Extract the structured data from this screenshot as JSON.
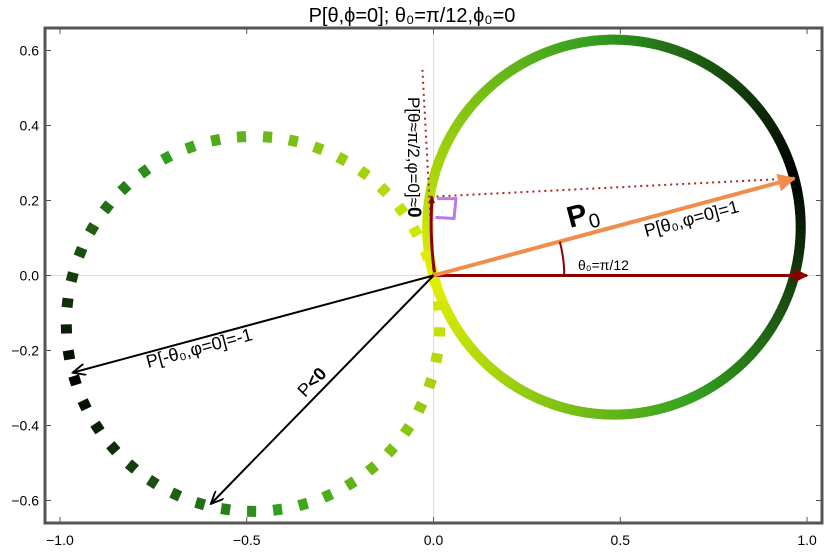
{
  "chart_data": {
    "type": "line",
    "title": "P[θ,ϕ=0]; θ₀=π/12,ϕ₀=0",
    "xlim": [
      -1.04,
      1.04
    ],
    "ylim": [
      -0.66,
      0.66
    ],
    "x_ticks": [
      {
        "value": -1.0,
        "label": "−1.0"
      },
      {
        "value": -0.5,
        "label": "−0.5"
      },
      {
        "value": 0.0,
        "label": "0.0"
      },
      {
        "value": 0.5,
        "label": "0.5"
      },
      {
        "value": 1.0,
        "label": "1.0"
      }
    ],
    "y_ticks": [
      {
        "value": -0.6,
        "label": "−0.6"
      },
      {
        "value": -0.4,
        "label": "−0.4"
      },
      {
        "value": -0.2,
        "label": "−0.2"
      },
      {
        "value": 0.0,
        "label": "0.0"
      },
      {
        "value": 0.2,
        "label": "0.2"
      },
      {
        "value": 0.4,
        "label": "0.4"
      },
      {
        "value": 0.6,
        "label": "0.6"
      }
    ],
    "grid": false,
    "series": [
      {
        "style": "solid",
        "curve": "P = cos(θ−θ₀), positive lobe",
        "center": [
          0.483,
          0.129
        ],
        "radius": 0.5
      },
      {
        "style": "dashed",
        "curve": "P < 0, negative lobe",
        "center": [
          -0.483,
          -0.129
        ],
        "radius": 0.5
      }
    ],
    "colors": {
      "frame": "#555555",
      "arrow_dark_red": "#8b0000",
      "arrow_orange": "#f28c4a",
      "dotted_red": "#b22222",
      "right_angle": "#b57bef",
      "gradient_light": "#e6f000",
      "gradient_mid": "#33a01f",
      "gradient_dark": "#000000"
    },
    "vectors": [
      {
        "name": "P0",
        "from": [
          0,
          0
        ],
        "to": [
          0.966,
          0.259
        ]
      },
      {
        "name": "unit x",
        "from": [
          0,
          0
        ],
        "to": [
          1.0,
          0.0
        ]
      },
      {
        "name": "P at θ=π/2",
        "from": [
          0,
          0
        ],
        "to": [
          -0.008,
          0.21
        ]
      },
      {
        "name": "P[-θ0]",
        "from": [
          0,
          0
        ],
        "to": [
          -0.966,
          -0.259
        ]
      },
      {
        "name": "P<0",
        "from": [
          0,
          0
        ],
        "to": [
          -0.596,
          -0.609
        ]
      }
    ],
    "annotations": {
      "p0_letter": "P",
      "p0_sub": "0",
      "p_theta0": "P[θ₀,φ=0]=1",
      "theta0": "θ₀=π/12",
      "p_minus": "P[-θ₀,φ=0]=-1",
      "p_neg_prefix": "P",
      "p_neg_bold": "<0",
      "p_half_prefix": "P[θ≈π/2,φ=0]≈",
      "p_half_bold": "0"
    }
  }
}
